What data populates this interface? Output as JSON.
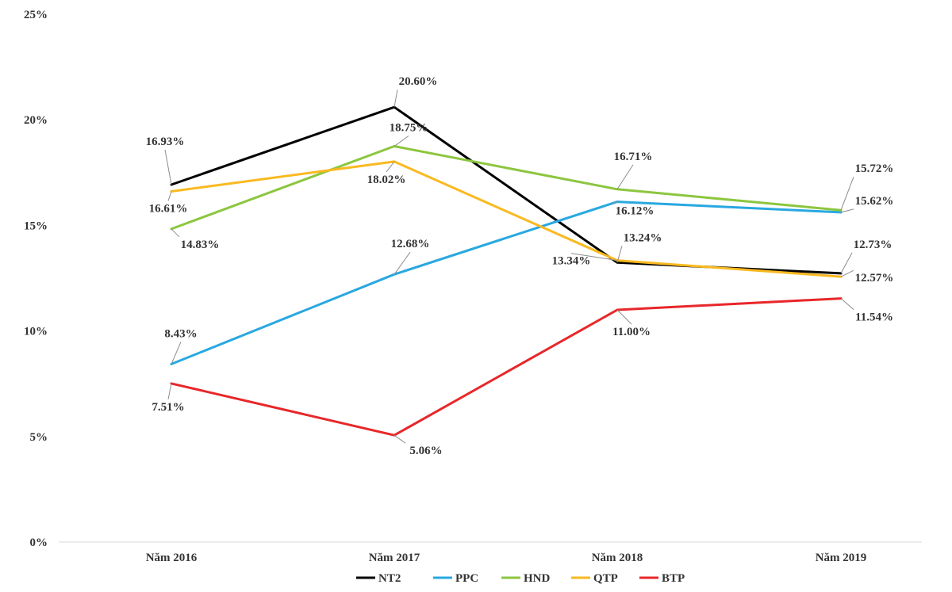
{
  "chart_data": {
    "type": "line",
    "title": "",
    "xlabel": "",
    "ylabel": "",
    "ylim": [
      0,
      25
    ],
    "yticks": [
      0,
      5,
      10,
      15,
      20,
      25
    ],
    "yticks_labels": [
      "0%",
      "5%",
      "10%",
      "15%",
      "20%",
      "25%"
    ],
    "grid": false,
    "legend": "bottom",
    "categories": [
      "Năm 2016",
      "Năm 2017",
      "Năm 2018",
      "Năm 2019"
    ],
    "series": [
      {
        "name": "NT2",
        "color": "#000000",
        "values": [
          16.93,
          20.6,
          13.24,
          12.73
        ],
        "labels": [
          "16.93%",
          "20.60%",
          "13.24%",
          "12.73%"
        ]
      },
      {
        "name": "PPC",
        "color": "#29a8e0",
        "values": [
          8.43,
          12.68,
          16.12,
          15.62
        ],
        "labels": [
          "8.43%",
          "12.68%",
          "16.12%",
          "15.62%"
        ]
      },
      {
        "name": "HND",
        "color": "#8cc63f",
        "values": [
          14.83,
          18.75,
          16.71,
          15.72
        ],
        "labels": [
          "14.83%",
          "18.75%",
          "16.71%",
          "15.72%"
        ]
      },
      {
        "name": "QTP",
        "color": "#f9b920",
        "values": [
          16.61,
          18.02,
          13.34,
          12.57
        ],
        "labels": [
          "16.61%",
          "18.02%",
          "13.34%",
          "12.57%"
        ]
      },
      {
        "name": "BTP",
        "color": "#e8272a",
        "values": [
          7.51,
          5.06,
          11.0,
          11.54
        ],
        "labels": [
          "7.51%",
          "5.06%",
          "11.00%",
          "11.54%"
        ]
      }
    ]
  }
}
